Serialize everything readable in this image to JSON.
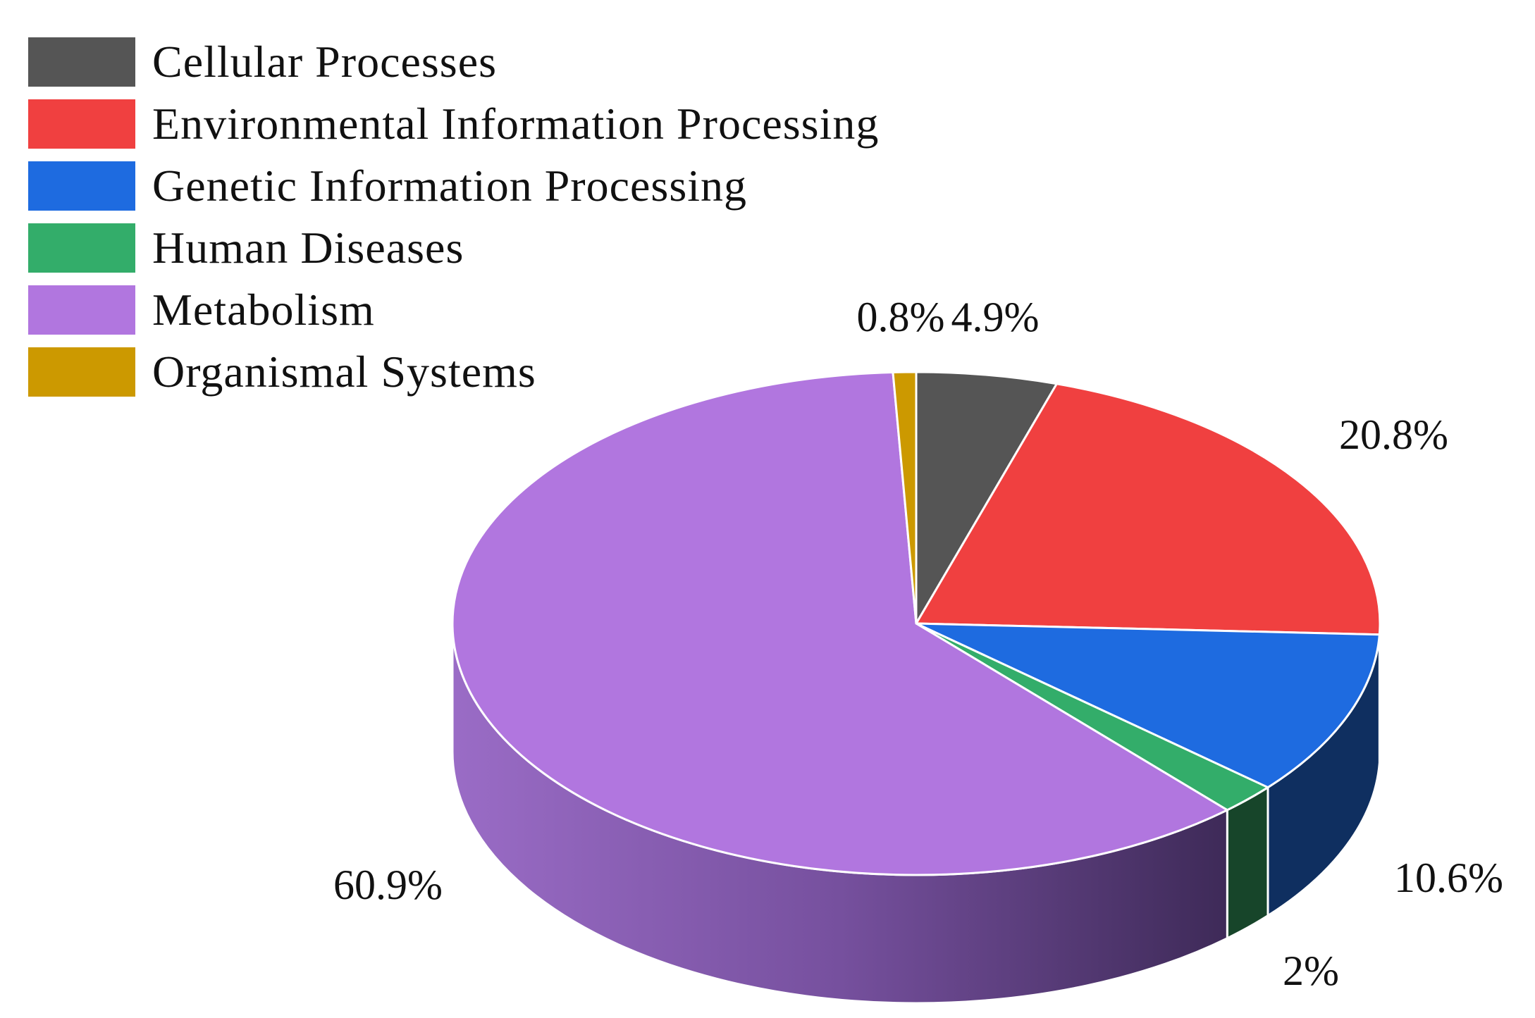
{
  "chart_data": {
    "type": "pie",
    "style": "3d",
    "legend_position": "top-left",
    "slices": [
      {
        "name": "Cellular Processes",
        "value": 4.9,
        "label": "4.9%",
        "color": "#555555",
        "side_color": "#2e2e2e"
      },
      {
        "name": "Environmental Information Processing",
        "value": 20.8,
        "label": "20.8%",
        "color": "#f04040",
        "side_color": "#7a1f1f"
      },
      {
        "name": "Genetic Information Processing",
        "value": 10.6,
        "label": "10.6%",
        "color": "#1e6be0",
        "side_color": "#0f2f60"
      },
      {
        "name": "Human Diseases",
        "value": 2,
        "label": "2%",
        "color": "#33ad6a",
        "side_color": "#17452a"
      },
      {
        "name": "Metabolism",
        "value": 60.9,
        "label": "60.9%",
        "color": "#b176df",
        "side_color": "#8a5cb5"
      },
      {
        "name": "Organismal Systems",
        "value": 0.8,
        "label": "0.8%",
        "color": "#cc9900",
        "side_color": "#7a5c00"
      }
    ]
  }
}
